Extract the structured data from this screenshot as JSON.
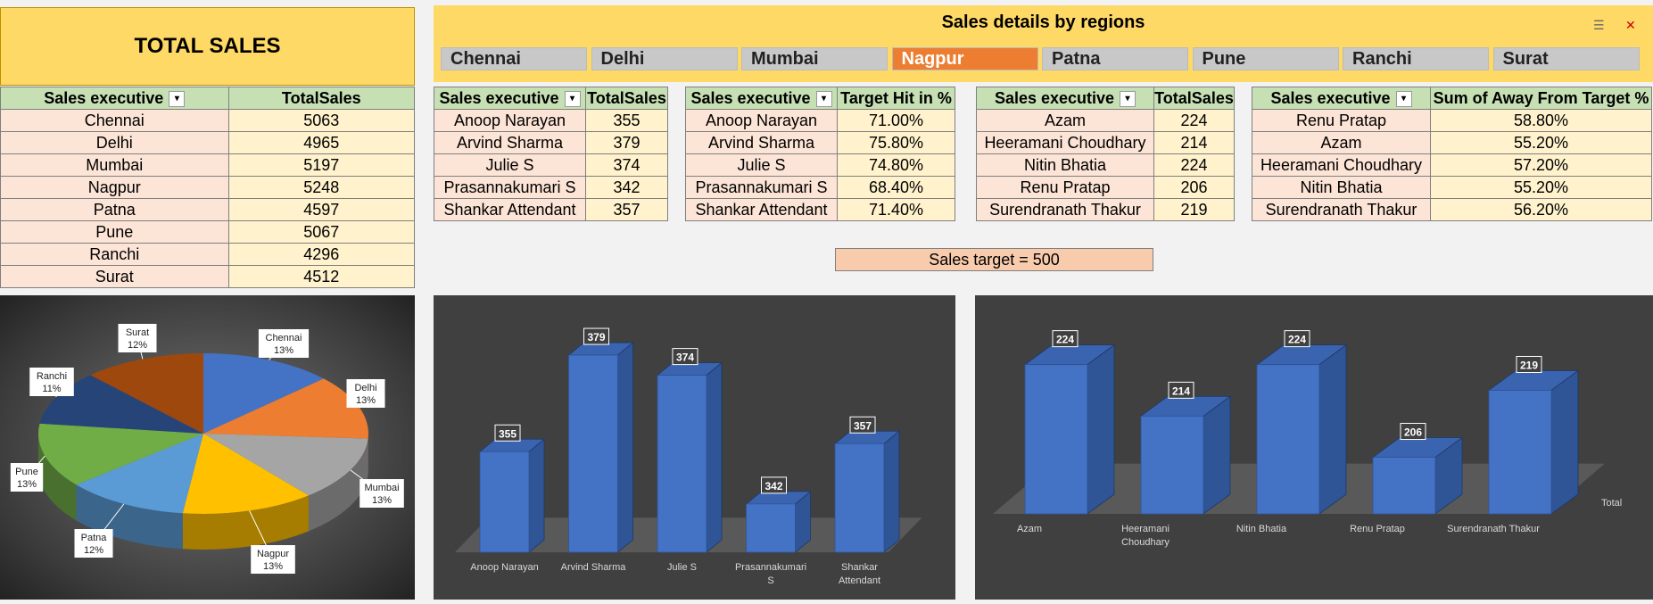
{
  "total_sales": {
    "title": "TOTAL SALES",
    "headers": [
      "Sales executive",
      "TotalSales"
    ],
    "rows": [
      [
        "Chennai",
        "5063"
      ],
      [
        "Delhi",
        "4965"
      ],
      [
        "Mumbai",
        "5197"
      ],
      [
        "Nagpur",
        "5248"
      ],
      [
        "Patna",
        "4597"
      ],
      [
        "Pune",
        "5067"
      ],
      [
        "Ranchi",
        "4296"
      ],
      [
        "Surat",
        "4512"
      ]
    ]
  },
  "region_panel": {
    "title": "Sales details by regions",
    "regions": [
      "Chennai",
      "Delhi",
      "Mumbai",
      "Nagpur",
      "Patna",
      "Pune",
      "Ranchi",
      "Surat"
    ],
    "selected": "Nagpur"
  },
  "table_totalsales": {
    "headers": [
      "Sales executive",
      "TotalSales"
    ],
    "rows": [
      [
        "Anoop Narayan",
        "355"
      ],
      [
        "Arvind Sharma",
        "379"
      ],
      [
        "Julie S",
        "374"
      ],
      [
        "Prasannakumari S",
        "342"
      ],
      [
        "Shankar Attendant",
        "357"
      ]
    ]
  },
  "table_target_hit": {
    "headers": [
      "Sales executive",
      "Target Hit in %"
    ],
    "rows": [
      [
        "Anoop Narayan",
        "71.00%"
      ],
      [
        "Arvind Sharma",
        "75.80%"
      ],
      [
        "Julie S",
        "74.80%"
      ],
      [
        "Prasannakumari S",
        "68.40%"
      ],
      [
        "Shankar Attendant",
        "71.40%"
      ]
    ]
  },
  "table_azam": {
    "headers": [
      "Sales executive",
      "TotalSales"
    ],
    "rows": [
      [
        "Azam",
        "224"
      ],
      [
        "Heeramani Choudhary",
        "214"
      ],
      [
        "Nitin Bhatia",
        "224"
      ],
      [
        "Renu Pratap",
        "206"
      ],
      [
        "Surendranath Thakur",
        "219"
      ]
    ]
  },
  "table_away": {
    "headers": [
      "Sales executive",
      "Sum of Away From Target %"
    ],
    "rows": [
      [
        "Renu Pratap",
        "58.80%"
      ],
      [
        "Azam",
        "55.20%"
      ],
      [
        "Heeramani Choudhary",
        "57.20%"
      ],
      [
        "Nitin Bhatia",
        "55.20%"
      ],
      [
        "Surendranath Thakur",
        "56.20%"
      ]
    ]
  },
  "sales_target": "Sales target = 500",
  "chart_data": [
    {
      "type": "pie",
      "categories": [
        "Chennai",
        "Delhi",
        "Mumbai",
        "Nagpur",
        "Patna",
        "Pune",
        "Ranchi",
        "Surat"
      ],
      "values": [
        13,
        13,
        13,
        13,
        12,
        13,
        11,
        12
      ],
      "labels": [
        "Chennai\n13%",
        "Delhi\n13%",
        "Mumbai\n13%",
        "Nagpur\n13%",
        "Patna\n12%",
        "Pune\n13%",
        "Ranchi\n11%",
        "Surat\n12%"
      ],
      "colors": [
        "#4472c4",
        "#ed7d31",
        "#a5a5a5",
        "#ffc000",
        "#5b9bd5",
        "#70ad47",
        "#264478",
        "#9e480e"
      ]
    },
    {
      "type": "bar",
      "categories": [
        "Anoop Narayan",
        "Arvind Sharma",
        "Julie S",
        "Prasannakumari S",
        "Shankar Attendant"
      ],
      "values": [
        355,
        379,
        374,
        342,
        357
      ],
      "ylim": [
        330,
        385
      ]
    },
    {
      "type": "bar",
      "categories": [
        "Azam",
        "Heeramani Choudhary",
        "Nitin Bhatia",
        "Renu Pratap",
        "Surendranath Thakur"
      ],
      "values": [
        224,
        214,
        224,
        206,
        219
      ],
      "ylim": [
        195,
        230
      ],
      "legend": "Total"
    }
  ]
}
